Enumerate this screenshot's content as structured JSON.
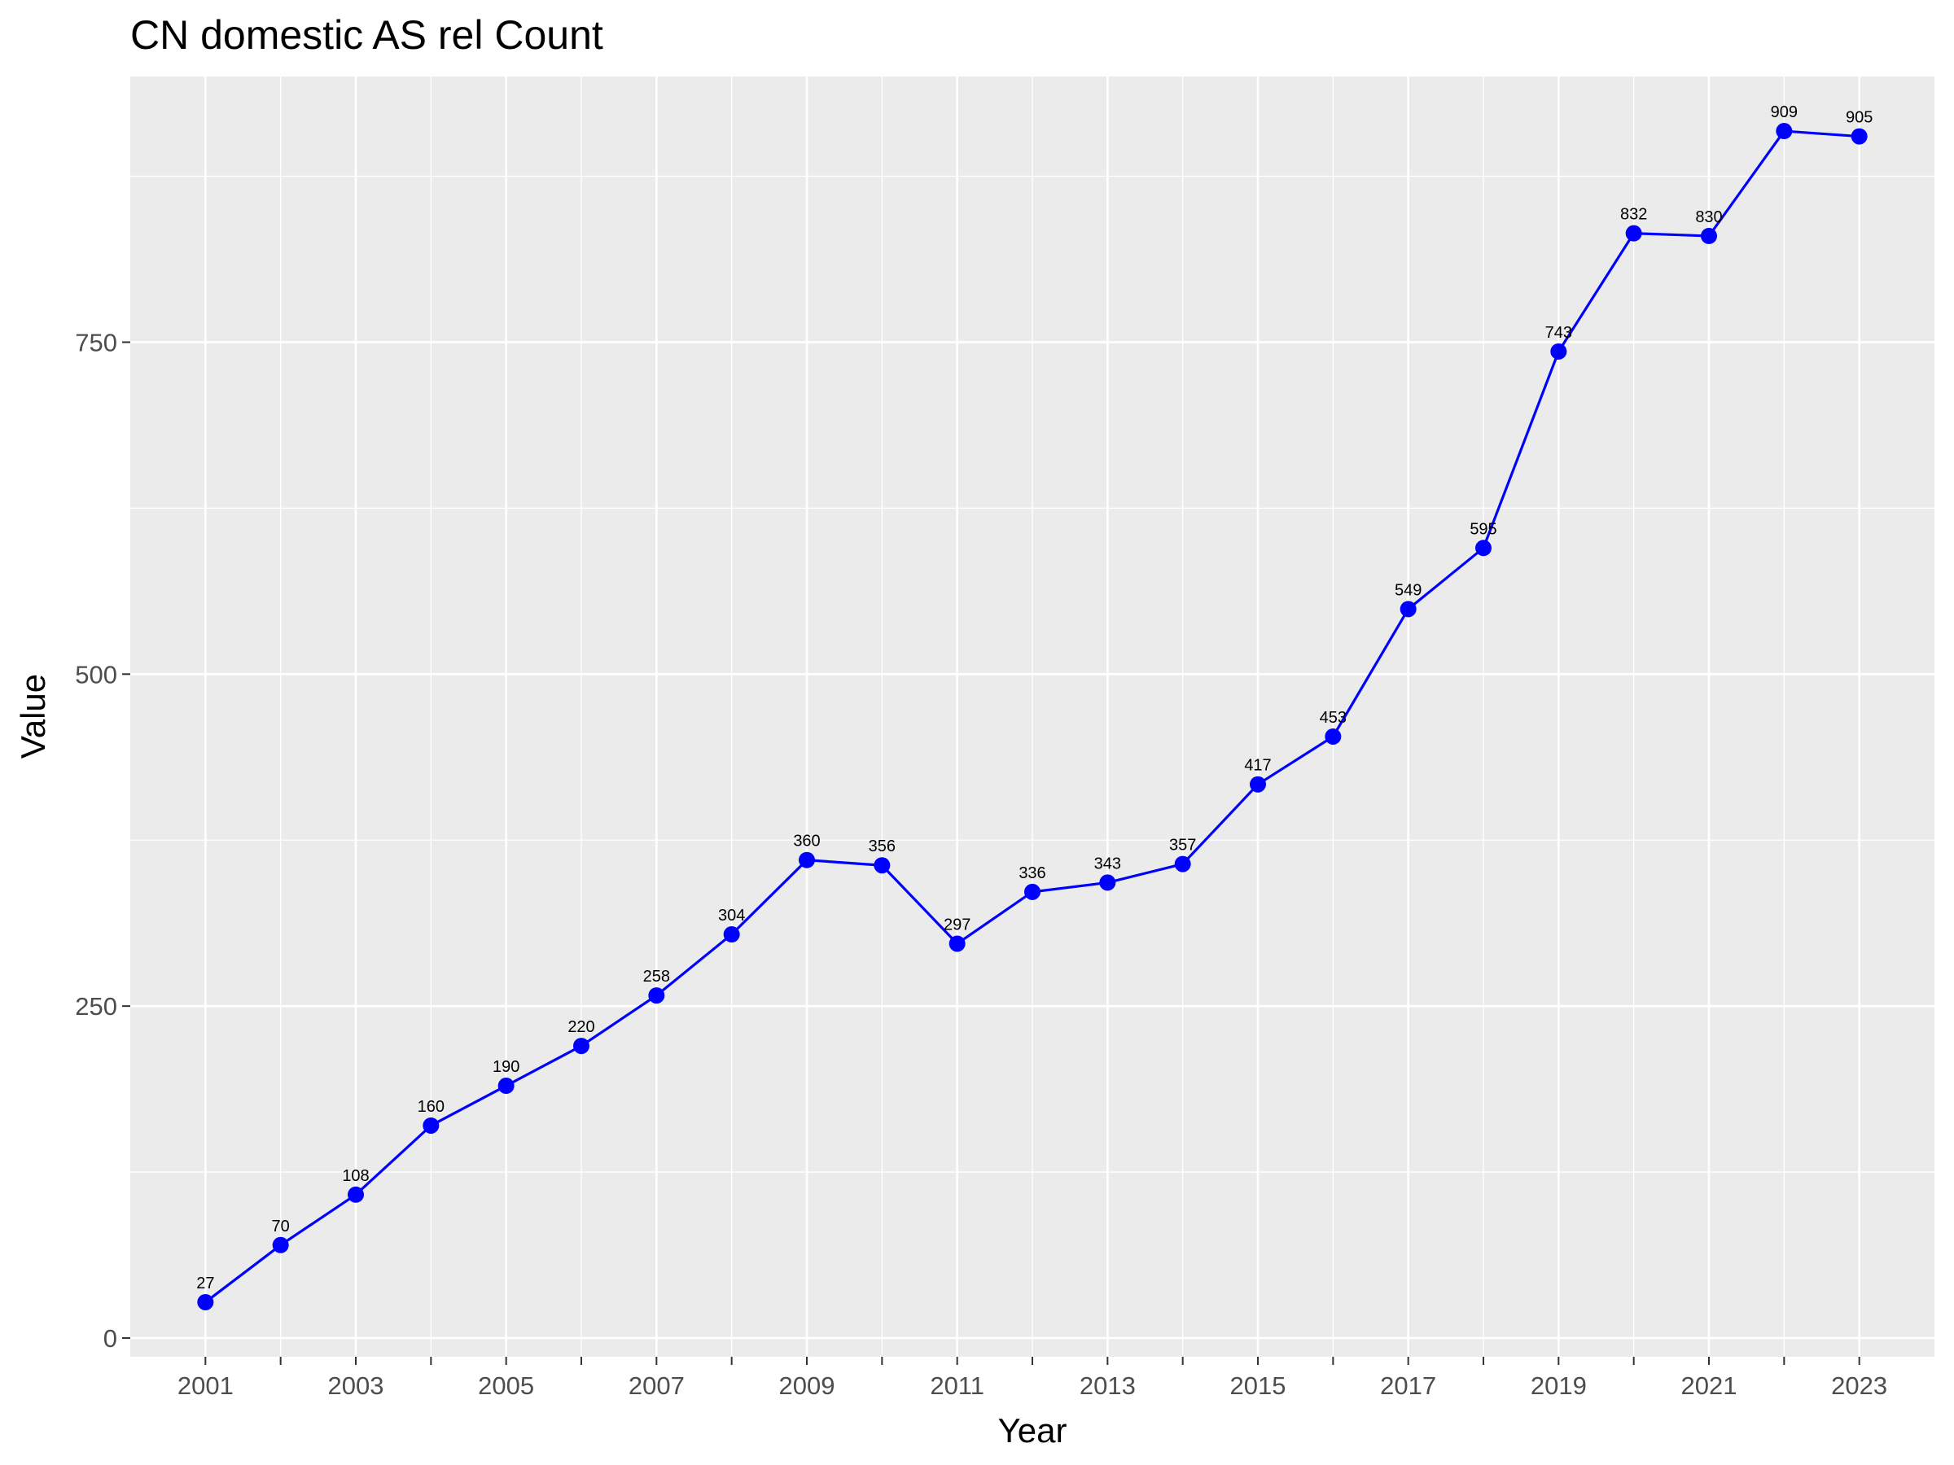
{
  "chart_data": {
    "type": "line",
    "title": "CN domestic AS rel Count",
    "xlabel": "Year",
    "ylabel": "Value",
    "x": [
      2001,
      2002,
      2003,
      2004,
      2005,
      2006,
      2007,
      2008,
      2009,
      2010,
      2011,
      2012,
      2013,
      2014,
      2015,
      2016,
      2017,
      2018,
      2019,
      2020,
      2021,
      2022,
      2023
    ],
    "series": [
      {
        "values": [
          27,
          70,
          108,
          160,
          190,
          220,
          258,
          304,
          360,
          356,
          297,
          336,
          343,
          357,
          417,
          453,
          549,
          595,
          743,
          832,
          830,
          909,
          905
        ],
        "color": "#0000ff"
      }
    ],
    "xticks": [
      "2001",
      "2003",
      "2005",
      "2007",
      "2009",
      "2011",
      "2013",
      "2015",
      "2017",
      "2019",
      "2021",
      "2023"
    ],
    "yticks": [
      "0",
      "250",
      "500",
      "750"
    ],
    "xlim": [
      2000,
      2024
    ],
    "ylim": [
      -14.1,
      950.1
    ],
    "grid": true,
    "legend": "none",
    "panel_background": "#ebebeb",
    "grid_color": "#ffffff"
  }
}
